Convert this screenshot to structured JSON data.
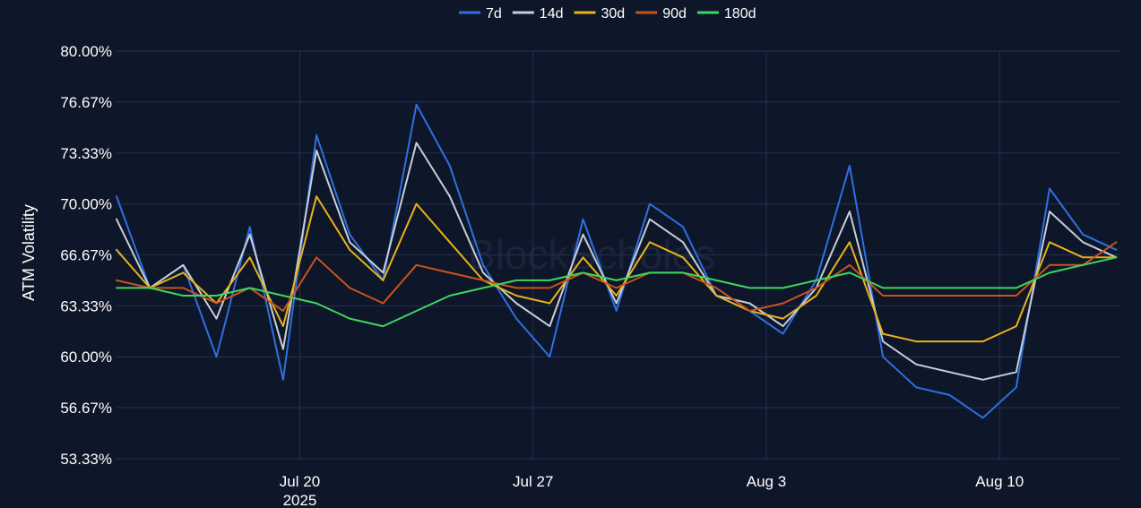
{
  "chart_data": {
    "type": "line",
    "ylabel": "ATM Volatility",
    "watermark": "BlockScholes",
    "ylim": [
      53.33,
      80.0
    ],
    "yticks": [
      "53.33%",
      "56.67%",
      "60.00%",
      "63.33%",
      "66.67%",
      "70.00%",
      "73.33%",
      "76.67%",
      "80.00%"
    ],
    "xlim": [
      "2025-07-14T12:00",
      "2025-08-13T15:00"
    ],
    "xticks": [
      {
        "date": "2025-07-20",
        "label": "Jul 20",
        "sublabel": "2025"
      },
      {
        "date": "2025-07-27",
        "label": "Jul 27",
        "sublabel": ""
      },
      {
        "date": "2025-08-03",
        "label": "Aug 3",
        "sublabel": ""
      },
      {
        "date": "2025-08-10",
        "label": "Aug 10",
        "sublabel": ""
      }
    ],
    "legend_position": "top-center",
    "grid": true,
    "x": [
      "2025-07-14T12:00",
      "2025-07-15T12:00",
      "2025-07-16T12:00",
      "2025-07-17T12:00",
      "2025-07-18T12:00",
      "2025-07-19T12:00",
      "2025-07-20T12:00",
      "2025-07-21T12:00",
      "2025-07-22T12:00",
      "2025-07-23T12:00",
      "2025-07-24T12:00",
      "2025-07-25T12:00",
      "2025-07-26T12:00",
      "2025-07-27T12:00",
      "2025-07-28T12:00",
      "2025-07-29T12:00",
      "2025-07-30T12:00",
      "2025-07-31T12:00",
      "2025-08-01T12:00",
      "2025-08-02T12:00",
      "2025-08-03T12:00",
      "2025-08-04T12:00",
      "2025-08-05T12:00",
      "2025-08-06T12:00",
      "2025-08-07T12:00",
      "2025-08-08T12:00",
      "2025-08-09T12:00",
      "2025-08-10T12:00",
      "2025-08-11T12:00",
      "2025-08-12T12:00",
      "2025-08-13T12:00"
    ],
    "series": [
      {
        "name": "7d",
        "color": "#2f6fe0",
        "values": [
          70.5,
          64.5,
          66.0,
          60.0,
          68.5,
          58.5,
          74.5,
          68.0,
          65.0,
          76.5,
          72.5,
          66.0,
          62.5,
          60.0,
          69.0,
          63.0,
          70.0,
          68.5,
          64.0,
          63.0,
          61.5,
          65.0,
          72.5,
          60.0,
          58.0,
          57.5,
          56.0,
          58.0,
          71.0,
          68.0,
          67.0
        ]
      },
      {
        "name": "14d",
        "color": "#c8ced8",
        "values": [
          69.0,
          64.5,
          66.0,
          62.5,
          68.0,
          60.5,
          73.5,
          67.5,
          65.5,
          74.0,
          70.5,
          65.5,
          63.5,
          62.0,
          68.0,
          63.5,
          69.0,
          67.5,
          64.0,
          63.5,
          62.0,
          64.5,
          69.5,
          61.0,
          59.5,
          59.0,
          58.5,
          59.0,
          69.5,
          67.5,
          66.5
        ]
      },
      {
        "name": "30d",
        "color": "#e8b21a",
        "values": [
          67.0,
          64.5,
          65.5,
          63.5,
          66.5,
          62.0,
          70.5,
          67.0,
          65.0,
          70.0,
          67.5,
          65.0,
          64.0,
          63.5,
          66.5,
          64.0,
          67.5,
          66.5,
          64.0,
          63.0,
          62.5,
          64.0,
          67.5,
          61.5,
          61.0,
          61.0,
          61.0,
          62.0,
          67.5,
          66.5,
          66.5
        ]
      },
      {
        "name": "90d",
        "color": "#c9541b",
        "values": [
          65.0,
          64.5,
          64.5,
          63.5,
          64.5,
          63.0,
          66.5,
          64.5,
          63.5,
          66.0,
          65.5,
          65.0,
          64.5,
          64.5,
          65.5,
          64.5,
          65.5,
          65.5,
          64.5,
          63.0,
          63.5,
          64.5,
          66.0,
          64.0,
          64.0,
          64.0,
          64.0,
          64.0,
          66.0,
          66.0,
          67.5
        ]
      },
      {
        "name": "180d",
        "color": "#3bd85e",
        "values": [
          64.5,
          64.5,
          64.0,
          64.0,
          64.5,
          64.0,
          63.5,
          62.5,
          62.0,
          63.0,
          64.0,
          64.5,
          65.0,
          65.0,
          65.5,
          65.0,
          65.5,
          65.5,
          65.0,
          64.5,
          64.5,
          65.0,
          65.5,
          64.5,
          64.5,
          64.5,
          64.5,
          64.5,
          65.5,
          66.0,
          66.5
        ]
      }
    ]
  }
}
